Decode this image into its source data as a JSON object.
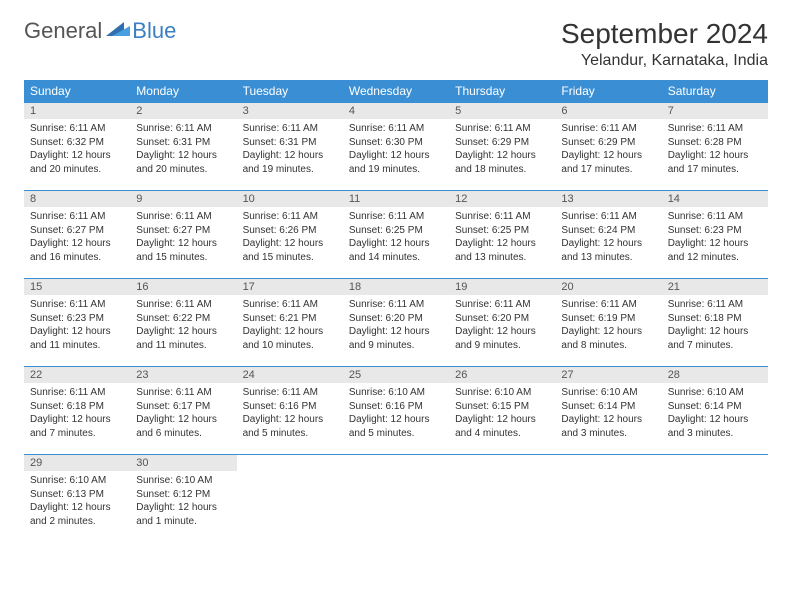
{
  "logo": {
    "part1": "General",
    "part2": "Blue"
  },
  "title": "September 2024",
  "location": "Yelandur, Karnataka, India",
  "colors": {
    "header_bg": "#3a8fd4",
    "header_text": "#ffffff",
    "daynum_bg": "#e8e8e8",
    "border": "#3a8fd4",
    "logo_blue": "#3a7fc4",
    "text": "#333333"
  },
  "weekdays": [
    "Sunday",
    "Monday",
    "Tuesday",
    "Wednesday",
    "Thursday",
    "Friday",
    "Saturday"
  ],
  "days": [
    {
      "n": 1,
      "sr": "6:11 AM",
      "ss": "6:32 PM",
      "dl": "12 hours and 20 minutes."
    },
    {
      "n": 2,
      "sr": "6:11 AM",
      "ss": "6:31 PM",
      "dl": "12 hours and 20 minutes."
    },
    {
      "n": 3,
      "sr": "6:11 AM",
      "ss": "6:31 PM",
      "dl": "12 hours and 19 minutes."
    },
    {
      "n": 4,
      "sr": "6:11 AM",
      "ss": "6:30 PM",
      "dl": "12 hours and 19 minutes."
    },
    {
      "n": 5,
      "sr": "6:11 AM",
      "ss": "6:29 PM",
      "dl": "12 hours and 18 minutes."
    },
    {
      "n": 6,
      "sr": "6:11 AM",
      "ss": "6:29 PM",
      "dl": "12 hours and 17 minutes."
    },
    {
      "n": 7,
      "sr": "6:11 AM",
      "ss": "6:28 PM",
      "dl": "12 hours and 17 minutes."
    },
    {
      "n": 8,
      "sr": "6:11 AM",
      "ss": "6:27 PM",
      "dl": "12 hours and 16 minutes."
    },
    {
      "n": 9,
      "sr": "6:11 AM",
      "ss": "6:27 PM",
      "dl": "12 hours and 15 minutes."
    },
    {
      "n": 10,
      "sr": "6:11 AM",
      "ss": "6:26 PM",
      "dl": "12 hours and 15 minutes."
    },
    {
      "n": 11,
      "sr": "6:11 AM",
      "ss": "6:25 PM",
      "dl": "12 hours and 14 minutes."
    },
    {
      "n": 12,
      "sr": "6:11 AM",
      "ss": "6:25 PM",
      "dl": "12 hours and 13 minutes."
    },
    {
      "n": 13,
      "sr": "6:11 AM",
      "ss": "6:24 PM",
      "dl": "12 hours and 13 minutes."
    },
    {
      "n": 14,
      "sr": "6:11 AM",
      "ss": "6:23 PM",
      "dl": "12 hours and 12 minutes."
    },
    {
      "n": 15,
      "sr": "6:11 AM",
      "ss": "6:23 PM",
      "dl": "12 hours and 11 minutes."
    },
    {
      "n": 16,
      "sr": "6:11 AM",
      "ss": "6:22 PM",
      "dl": "12 hours and 11 minutes."
    },
    {
      "n": 17,
      "sr": "6:11 AM",
      "ss": "6:21 PM",
      "dl": "12 hours and 10 minutes."
    },
    {
      "n": 18,
      "sr": "6:11 AM",
      "ss": "6:20 PM",
      "dl": "12 hours and 9 minutes."
    },
    {
      "n": 19,
      "sr": "6:11 AM",
      "ss": "6:20 PM",
      "dl": "12 hours and 9 minutes."
    },
    {
      "n": 20,
      "sr": "6:11 AM",
      "ss": "6:19 PM",
      "dl": "12 hours and 8 minutes."
    },
    {
      "n": 21,
      "sr": "6:11 AM",
      "ss": "6:18 PM",
      "dl": "12 hours and 7 minutes."
    },
    {
      "n": 22,
      "sr": "6:11 AM",
      "ss": "6:18 PM",
      "dl": "12 hours and 7 minutes."
    },
    {
      "n": 23,
      "sr": "6:11 AM",
      "ss": "6:17 PM",
      "dl": "12 hours and 6 minutes."
    },
    {
      "n": 24,
      "sr": "6:11 AM",
      "ss": "6:16 PM",
      "dl": "12 hours and 5 minutes."
    },
    {
      "n": 25,
      "sr": "6:10 AM",
      "ss": "6:16 PM",
      "dl": "12 hours and 5 minutes."
    },
    {
      "n": 26,
      "sr": "6:10 AM",
      "ss": "6:15 PM",
      "dl": "12 hours and 4 minutes."
    },
    {
      "n": 27,
      "sr": "6:10 AM",
      "ss": "6:14 PM",
      "dl": "12 hours and 3 minutes."
    },
    {
      "n": 28,
      "sr": "6:10 AM",
      "ss": "6:14 PM",
      "dl": "12 hours and 3 minutes."
    },
    {
      "n": 29,
      "sr": "6:10 AM",
      "ss": "6:13 PM",
      "dl": "12 hours and 2 minutes."
    },
    {
      "n": 30,
      "sr": "6:10 AM",
      "ss": "6:12 PM",
      "dl": "12 hours and 1 minute."
    }
  ],
  "labels": {
    "sunrise": "Sunrise:",
    "sunset": "Sunset:",
    "daylight": "Daylight:"
  }
}
